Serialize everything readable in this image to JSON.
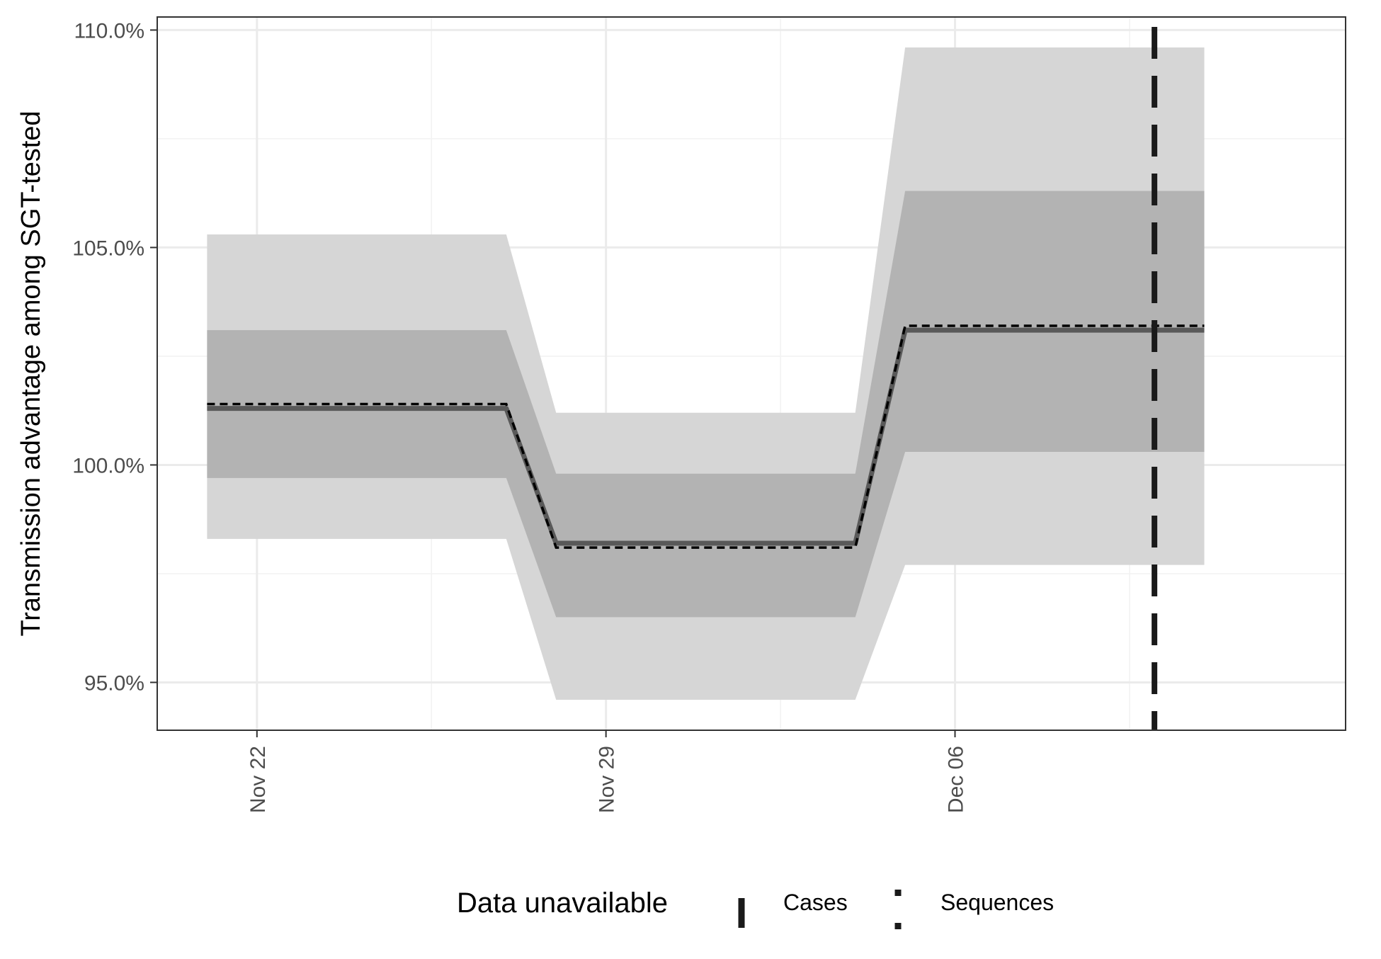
{
  "chart_data": {
    "type": "line",
    "ylabel": "Transmission advantage among SGT-tested",
    "xlabel": "",
    "x_ticks": [
      {
        "date": "2021-11-22",
        "label": "Nov 22"
      },
      {
        "date": "2021-11-29",
        "label": "Nov 29"
      },
      {
        "date": "2021-12-06",
        "label": "Dec 06"
      }
    ],
    "x_minor_gridlines": [
      "2021-11-25T12:00",
      "2021-12-02T12:00",
      "2021-12-09T12:00"
    ],
    "xlim": [
      "2021-11-20T00:00",
      "2021-12-13T20:00"
    ],
    "y_ticks": [
      {
        "value": 0.95,
        "label": "95.0%"
      },
      {
        "value": 1.0,
        "label": "100.0%"
      },
      {
        "value": 1.05,
        "label": "105.0%"
      },
      {
        "value": 1.1,
        "label": "110.0%"
      }
    ],
    "y_minor_gridlines": [
      0.975,
      1.025,
      1.075
    ],
    "ylim": [
      0.939,
      1.103
    ],
    "grid": true,
    "x": [
      "2021-11-21",
      "2021-11-27",
      "2021-11-28",
      "2021-12-04",
      "2021-12-05",
      "2021-12-11"
    ],
    "series": [
      {
        "role": "solid",
        "values": [
          1.013,
          1.013,
          0.982,
          0.982,
          1.031,
          1.031
        ]
      },
      {
        "role": "dashed",
        "values": [
          1.014,
          1.014,
          0.981,
          0.981,
          1.032,
          1.032
        ]
      }
    ],
    "bands": [
      {
        "role": "outer",
        "lower": [
          0.983,
          0.983,
          0.946,
          0.946,
          0.977,
          0.977
        ],
        "upper": [
          1.053,
          1.053,
          1.012,
          1.012,
          1.096,
          1.096
        ],
        "color": "#d6d6d6"
      },
      {
        "role": "inner",
        "lower": [
          0.997,
          0.997,
          0.965,
          0.965,
          1.003,
          1.003
        ],
        "upper": [
          1.031,
          1.031,
          0.998,
          0.998,
          1.063,
          1.063
        ],
        "color": "#b3b3b3"
      }
    ],
    "vlines": [
      {
        "date": "2021-12-10",
        "kind": "cases"
      }
    ],
    "legend": {
      "title": "Data unavailable",
      "placement": "bottom",
      "items": [
        {
          "label": "Cases",
          "kind": "cases"
        },
        {
          "label": "Sequences",
          "kind": "sequences"
        }
      ]
    },
    "colors": {
      "solid_line": "#595959",
      "dashed_line": "#000000",
      "vline": "#1a1a1a",
      "grid": "#ebebeb"
    }
  }
}
